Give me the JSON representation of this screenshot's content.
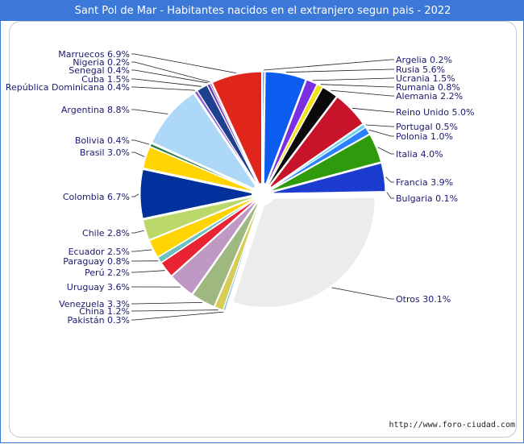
{
  "header": {
    "title": "Sant Pol de Mar - Habitantes nacidos en el extranjero segun pais - 2022"
  },
  "footer": {
    "source": "http://www.foro-ciudad.com"
  },
  "chart_data": {
    "type": "pie",
    "title": "Sant Pol de Mar - Habitantes nacidos en el extranjero segun pais - 2022",
    "unit": "%",
    "slices": [
      {
        "label": "Argelia",
        "value": 0.2,
        "color": "#1f3f8f"
      },
      {
        "label": "Rusia",
        "value": 5.6,
        "color": "#0c5cf0"
      },
      {
        "label": "Ucrania",
        "value": 1.5,
        "color": "#7a2fe0"
      },
      {
        "label": "Rumania",
        "value": 0.8,
        "color": "#f2e21a"
      },
      {
        "label": "Alemania",
        "value": 2.2,
        "color": "#0a0a0a"
      },
      {
        "label": "Reino Unido",
        "value": 5.0,
        "color": "#c8142a"
      },
      {
        "label": "Portugal",
        "value": 0.5,
        "color": "#6fd2f0"
      },
      {
        "label": "Polonia",
        "value": 1.0,
        "color": "#2a80ff"
      },
      {
        "label": "Italia",
        "value": 4.0,
        "color": "#2f9a0c"
      },
      {
        "label": "Francia",
        "value": 3.9,
        "color": "#1c3cd0"
      },
      {
        "label": "Bulgaria",
        "value": 0.1,
        "color": "#e41c1c"
      },
      {
        "label": "Otros",
        "value": 30.1,
        "color": "#ececec"
      },
      {
        "label": "Pakistán",
        "value": 0.3,
        "color": "#8ac8f0"
      },
      {
        "label": "China",
        "value": 1.2,
        "color": "#d8cc58"
      },
      {
        "label": "Venezuela",
        "value": 3.3,
        "color": "#9eb880"
      },
      {
        "label": "Uruguay",
        "value": 3.6,
        "color": "#c098c4"
      },
      {
        "label": "Perú",
        "value": 2.2,
        "color": "#e82434"
      },
      {
        "label": "Paraguay",
        "value": 0.8,
        "color": "#6ec0c0"
      },
      {
        "label": "Ecuador",
        "value": 2.5,
        "color": "#ffd400"
      },
      {
        "label": "Chile",
        "value": 2.8,
        "color": "#bcd86a"
      },
      {
        "label": "Colombia",
        "value": 6.7,
        "color": "#00319c"
      },
      {
        "label": "Brasil",
        "value": 3.0,
        "color": "#ffd400"
      },
      {
        "label": "Bolivia",
        "value": 0.4,
        "color": "#2a7a4a"
      },
      {
        "label": "Argentina",
        "value": 8.8,
        "color": "#aed8f8"
      },
      {
        "label": "República Dominicana",
        "value": 0.4,
        "color": "#8a5cd8"
      },
      {
        "label": "Cuba",
        "value": 1.5,
        "color": "#1f3f8f"
      },
      {
        "label": "Senegal",
        "value": 0.4,
        "color": "#6a3cc0"
      },
      {
        "label": "Nigeria",
        "value": 0.2,
        "color": "#c03080"
      },
      {
        "label": "Marruecos",
        "value": 6.9,
        "color": "#e0261a"
      }
    ]
  }
}
